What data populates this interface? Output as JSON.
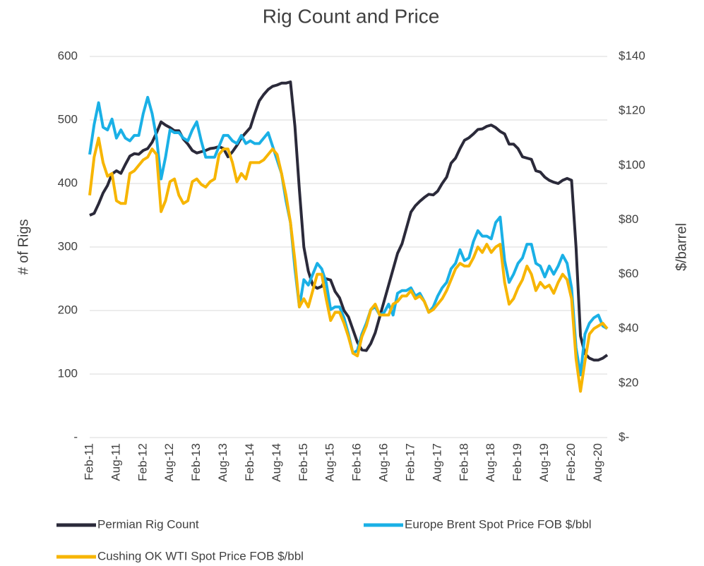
{
  "chart_data": {
    "type": "line",
    "title": "Rig Count and Price",
    "ylabel": "# of Rigs",
    "y2label": "$/barrel",
    "categories": [
      "Feb-11",
      null,
      null,
      null,
      null,
      null,
      "Aug-11",
      null,
      null,
      null,
      null,
      null,
      "Feb-12",
      null,
      null,
      null,
      null,
      null,
      "Aug-12",
      null,
      null,
      null,
      null,
      null,
      "Feb-13",
      null,
      null,
      null,
      null,
      null,
      "Aug-13",
      null,
      null,
      null,
      null,
      null,
      "Feb-14",
      null,
      null,
      null,
      null,
      null,
      "Aug-14",
      null,
      null,
      null,
      null,
      null,
      "Feb-15",
      null,
      null,
      null,
      null,
      null,
      "Aug-15",
      null,
      null,
      null,
      null,
      null,
      "Feb-16",
      null,
      null,
      null,
      null,
      null,
      "Aug-16",
      null,
      null,
      null,
      null,
      null,
      "Feb-17",
      null,
      null,
      null,
      null,
      null,
      "Aug-17",
      null,
      null,
      null,
      null,
      null,
      "Feb-18",
      null,
      null,
      null,
      null,
      null,
      "Aug-18",
      null,
      null,
      null,
      null,
      null,
      "Feb-19",
      null,
      null,
      null,
      null,
      null,
      "Aug-19",
      null,
      null,
      null,
      null,
      null,
      "Feb-20",
      null,
      null,
      null,
      null,
      null,
      "Aug-20",
      null,
      null
    ],
    "ylim": [
      0,
      600
    ],
    "yticks": [
      {
        "value": 0,
        "label": "-"
      },
      100,
      200,
      300,
      400,
      500,
      600
    ],
    "y2lim": [
      0,
      140
    ],
    "y2ticks": [
      {
        "value": 0,
        "label": "$-"
      },
      {
        "value": 20,
        "label": "$20"
      },
      {
        "value": 40,
        "label": "$40"
      },
      {
        "value": 60,
        "label": "$60"
      },
      {
        "value": 80,
        "label": "$80"
      },
      {
        "value": 100,
        "label": "$100"
      },
      {
        "value": 120,
        "label": "$120"
      },
      {
        "value": 140,
        "label": "$140"
      }
    ],
    "grid": true,
    "legend": "bottom",
    "series": [
      {
        "name": "Permian Rig Count",
        "color": "#2b2a3a",
        "values": [
          350,
          353,
          368,
          385,
          397,
          415,
          420,
          416,
          430,
          443,
          447,
          446,
          452,
          455,
          465,
          480,
          497,
          492,
          488,
          483,
          483,
          470,
          462,
          452,
          448,
          450,
          452,
          455,
          456,
          458,
          455,
          442,
          450,
          460,
          472,
          480,
          488,
          510,
          530,
          540,
          548,
          553,
          555,
          558,
          558,
          560,
          490,
          390,
          300,
          262,
          240,
          235,
          238,
          250,
          248,
          230,
          220,
          200,
          190,
          170,
          150,
          138,
          137,
          148,
          165,
          190,
          215,
          240,
          265,
          290,
          305,
          330,
          355,
          365,
          372,
          378,
          383,
          382,
          388,
          400,
          410,
          432,
          440,
          455,
          468,
          472,
          478,
          485,
          486,
          490,
          492,
          488,
          482,
          478,
          462,
          462,
          455,
          442,
          440,
          438,
          420,
          418,
          410,
          405,
          402,
          400,
          405,
          408,
          405,
          300,
          160,
          132,
          125,
          122,
          122,
          125,
          130
        ]
      },
      {
        "name": "Europe Brent Spot Price FOB $/bbl",
        "color": "#1ab0e6",
        "axis": "y2",
        "values": [
          104,
          115,
          123,
          114,
          113,
          117,
          110,
          113,
          110,
          109,
          111,
          111,
          119,
          125,
          119,
          110,
          95,
          103,
          113,
          112,
          112,
          110,
          109,
          113,
          116,
          109,
          103,
          103,
          103,
          107,
          111,
          111,
          109,
          108,
          111,
          108,
          109,
          108,
          108,
          110,
          112,
          107,
          102,
          97,
          87,
          79,
          62,
          48,
          58,
          56,
          60,
          64,
          62,
          57,
          47,
          48,
          48,
          44,
          38,
          31,
          32,
          38,
          42,
          47,
          48,
          45,
          46,
          49,
          45,
          53,
          54,
          54,
          55,
          52,
          53,
          50,
          46,
          48,
          52,
          55,
          57,
          62,
          64,
          69,
          65,
          66,
          72,
          76,
          74,
          74,
          73,
          79,
          81,
          65,
          57,
          60,
          64,
          66,
          71,
          71,
          64,
          63,
          59,
          63,
          60,
          63,
          67,
          64,
          55,
          33,
          23,
          38,
          42,
          44,
          45,
          41,
          40
        ]
      },
      {
        "name": "Cushing OK WTI Spot Price FOB $/bbl",
        "color": "#f7b500",
        "axis": "y2",
        "values": [
          89,
          103,
          110,
          101,
          96,
          97,
          87,
          86,
          86,
          97,
          98,
          100,
          102,
          103,
          106,
          104,
          83,
          87,
          94,
          95,
          89,
          86,
          87,
          94,
          95,
          93,
          92,
          94,
          95,
          104,
          106,
          106,
          101,
          94,
          97,
          95,
          101,
          101,
          101,
          102,
          104,
          106,
          104,
          97,
          89,
          79,
          65,
          48,
          51,
          48,
          54,
          60,
          60,
          51,
          43,
          46,
          46,
          42,
          37,
          31,
          30,
          37,
          41,
          47,
          49,
          45,
          45,
          45,
          49,
          50,
          52,
          52,
          54,
          51,
          52,
          50,
          46,
          47,
          49,
          51,
          54,
          58,
          62,
          64,
          63,
          63,
          66,
          70,
          68,
          71,
          68,
          70,
          71,
          57,
          49,
          51,
          55,
          58,
          63,
          60,
          54,
          57,
          55,
          56,
          53,
          57,
          60,
          58,
          51,
          29,
          17,
          28,
          38,
          40,
          41,
          42,
          40
        ]
      }
    ]
  }
}
